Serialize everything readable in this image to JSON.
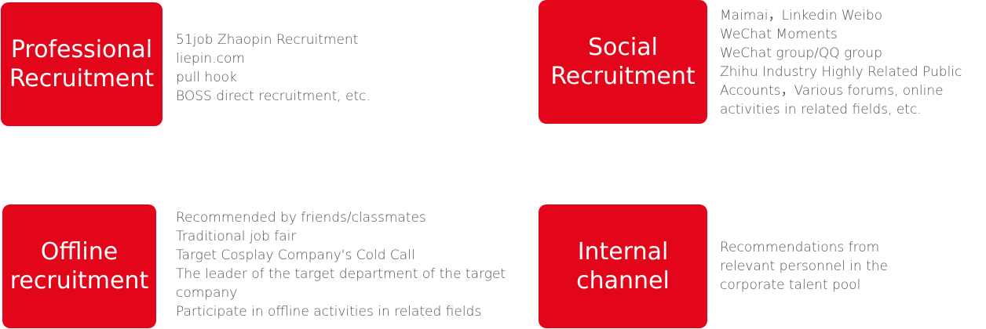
{
  "colors": {
    "box_background": "#e3061a",
    "box_text": "#ffffff",
    "description_text": "#555555"
  },
  "channels": [
    {
      "title_lines": [
        "Professional",
        "Recruitment"
      ],
      "description_lines": [
        "51job Zhaopin Recruitment",
        "liepin.com",
        "pull hook",
        "BOSS direct recruitment, etc."
      ]
    },
    {
      "title_lines": [
        "Social",
        "Recruitment"
      ],
      "description_lines": [
        "Maimai，Linkedin Weibo",
        "WeChat Moments",
        "WeChat group/QQ group",
        "Zhihu Industry Highly Related Public",
        "Accounts，Various forums, online",
        "activities in related fields, etc."
      ]
    },
    {
      "title_lines": [
        "Offline",
        "recruitment"
      ],
      "description_lines": [
        "Recommended by friends/classmates",
        "Traditional job fair",
        "Target Cosplay Company's Cold Call",
        "The leader of the target department of the target",
        "company",
        "Participate in offline activities in related fields"
      ]
    },
    {
      "title_lines": [
        "Internal",
        "channel"
      ],
      "description_lines": [
        "Recommendations from",
        "relevant personnel in the",
        "corporate talent pool"
      ]
    }
  ]
}
